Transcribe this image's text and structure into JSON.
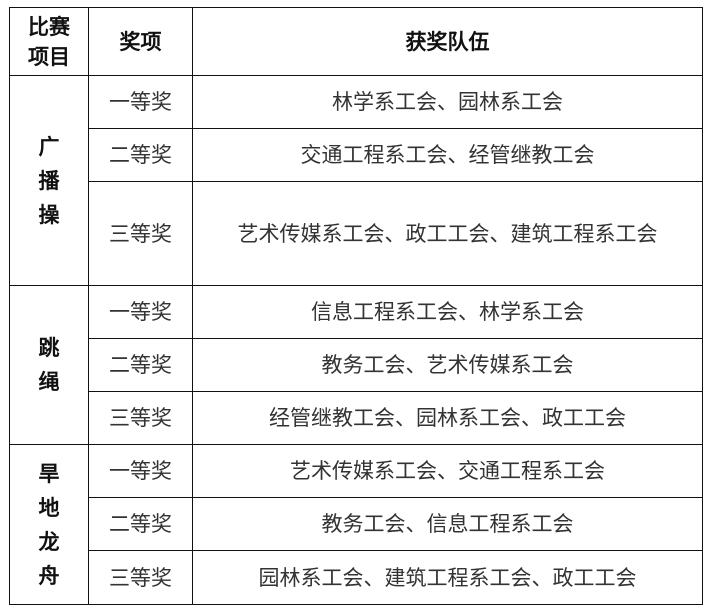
{
  "header": {
    "event": "比赛项目",
    "award": "奖项",
    "teams": "获奖队伍"
  },
  "groups": [
    {
      "event_chars": [
        "广",
        "播",
        "操"
      ],
      "rows": [
        {
          "award": "一等奖",
          "teams": "林学系工会、园林系工会"
        },
        {
          "award": "二等奖",
          "teams": "交通工程系工会、经管继教工会"
        },
        {
          "award": "三等奖",
          "teams": "艺术传媒系工会、政工工会、建筑工程系工会"
        }
      ]
    },
    {
      "event_chars": [
        "跳",
        "绳"
      ],
      "rows": [
        {
          "award": "一等奖",
          "teams": "信息工程系工会、林学系工会"
        },
        {
          "award": "二等奖",
          "teams": "教务工会、艺术传媒系工会"
        },
        {
          "award": "三等奖",
          "teams": "经管继教工会、园林系工会、政工工会"
        }
      ]
    },
    {
      "event_chars": [
        "旱",
        "地",
        "龙",
        "舟"
      ],
      "rows": [
        {
          "award": "一等奖",
          "teams": "艺术传媒系工会、交通工程系工会"
        },
        {
          "award": "二等奖",
          "teams": "教务工会、信息工程系工会"
        },
        {
          "award": "三等奖",
          "teams": "园林系工会、建筑工程系工会、政工工会"
        }
      ]
    }
  ]
}
